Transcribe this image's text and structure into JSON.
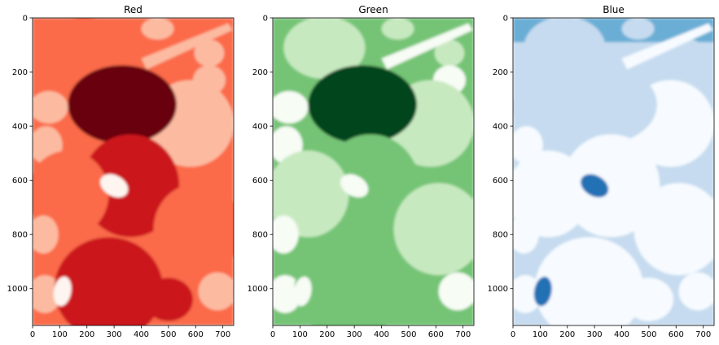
{
  "chart_data": {
    "type": "heatmap",
    "image": "photograph of fruit (apples, lemon, lime) split into RGB channel images, each shown with a single-hue sequential colormap",
    "image_size": {
      "width": 740,
      "height": 1136
    },
    "panels": [
      {
        "title": "Red",
        "colormap": "Reds",
        "colors": [
          "#fff5f0",
          "#fcbba1",
          "#fb6a4a",
          "#cb181d",
          "#67000d"
        ],
        "xticks": [
          0,
          100,
          200,
          300,
          400,
          500,
          600,
          700
        ],
        "yticks": [
          0,
          200,
          400,
          600,
          800,
          1000
        ],
        "xlim": [
          0,
          740
        ],
        "ylim": [
          1136,
          0
        ]
      },
      {
        "title": "Green",
        "colormap": "Greens",
        "colors": [
          "#f7fcf5",
          "#c7e9c0",
          "#74c476",
          "#238b45",
          "#00441b"
        ],
        "xticks": [
          0,
          100,
          200,
          300,
          400,
          500,
          600,
          700
        ],
        "yticks": [
          0,
          200,
          400,
          600,
          800,
          1000
        ],
        "xlim": [
          0,
          740
        ],
        "ylim": [
          1136,
          0
        ]
      },
      {
        "title": "Blue",
        "colormap": "Blues",
        "colors": [
          "#f7fbff",
          "#c6dbef",
          "#6baed6",
          "#2171b5",
          "#08306b"
        ],
        "xticks": [
          0,
          100,
          200,
          300,
          400,
          500,
          600,
          700
        ],
        "yticks": [
          0,
          200,
          400,
          600,
          800,
          1000
        ],
        "xlim": [
          0,
          740
        ],
        "ylim": [
          1136,
          0
        ]
      }
    ]
  }
}
